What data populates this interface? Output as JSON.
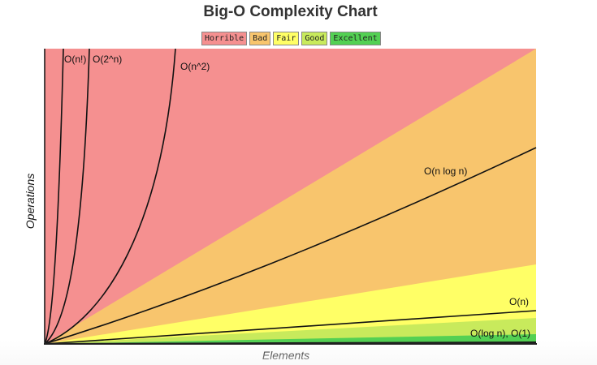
{
  "chart_data": {
    "type": "area",
    "title": "Big-O Complexity Chart",
    "xlabel": "Elements",
    "ylabel": "Operations",
    "legend": [
      {
        "name": "Horrible",
        "color": "#f59090"
      },
      {
        "name": "Bad",
        "color": "#f8c56d"
      },
      {
        "name": "Fair",
        "color": "#ffff66"
      },
      {
        "name": "Good",
        "color": "#c8ea5c"
      },
      {
        "name": "Excellent",
        "color": "#53d053"
      }
    ],
    "regions": [
      {
        "name": "Horrible",
        "color": "#f59090"
      },
      {
        "name": "Bad",
        "color": "#f8c56d"
      },
      {
        "name": "Fair",
        "color": "#ffff66"
      },
      {
        "name": "Good",
        "color": "#c8ea5c"
      },
      {
        "name": "Excellent",
        "color": "#53d053"
      }
    ],
    "series": [
      {
        "name": "O(n!)"
      },
      {
        "name": "O(2^n)"
      },
      {
        "name": "O(n^2)"
      },
      {
        "name": "O(n log n)"
      },
      {
        "name": "O(n)"
      },
      {
        "name": "O(log n), O(1)"
      }
    ],
    "grid": false,
    "legend_position": "top-center"
  }
}
